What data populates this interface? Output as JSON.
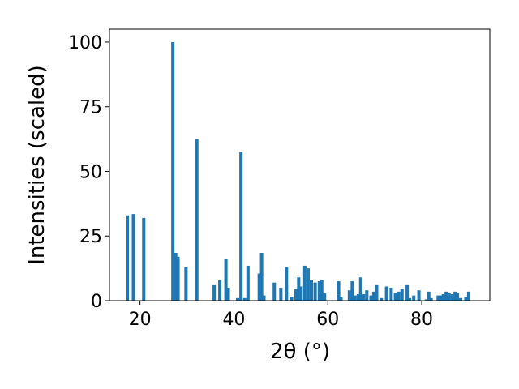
{
  "chart_data": {
    "type": "bar",
    "title": "",
    "xlabel": "2θ (°)",
    "ylabel": "Intensities (scaled)",
    "xlim": [
      13.5,
      94.5
    ],
    "ylim": [
      0,
      105
    ],
    "xticks": [
      20,
      40,
      60,
      80
    ],
    "yticks": [
      0,
      25,
      50,
      75,
      100
    ],
    "bar_width_deg": 0.7,
    "bar_color": "#1f77b4",
    "grid": false,
    "x": [
      17.3,
      18.6,
      20.8,
      27.0,
      27.6,
      28.1,
      29.8,
      32.1,
      35.8,
      37.0,
      38.3,
      38.8,
      40.8,
      41.5,
      42.3,
      43.0,
      45.4,
      45.9,
      46.4,
      48.6,
      50.0,
      51.2,
      52.3,
      53.2,
      53.8,
      54.3,
      55.1,
      55.8,
      56.5,
      57.3,
      58.2,
      58.7,
      59.3,
      62.3,
      62.8,
      64.6,
      65.2,
      65.8,
      66.5,
      67.0,
      67.6,
      68.3,
      69.2,
      69.8,
      70.4,
      71.4,
      72.5,
      73.5,
      74.4,
      75.1,
      75.8,
      76.9,
      77.4,
      78.3,
      79.4,
      81.0,
      81.5,
      82.0,
      83.5,
      84.0,
      84.6,
      85.2,
      85.8,
      86.5,
      87.1,
      87.6,
      88.3,
      89.4,
      90.0
    ],
    "values": [
      33.0,
      33.5,
      32.0,
      100.0,
      18.5,
      17.0,
      13.0,
      62.5,
      6.0,
      8.0,
      16.0,
      5.0,
      1.0,
      57.5,
      1.0,
      13.5,
      10.5,
      18.5,
      2.0,
      7.0,
      5.0,
      13.0,
      1.5,
      4.5,
      9.0,
      5.5,
      13.5,
      12.5,
      8.0,
      7.0,
      7.5,
      8.0,
      3.0,
      7.5,
      1.5,
      4.0,
      7.5,
      2.0,
      2.5,
      9.0,
      2.5,
      4.0,
      2.0,
      3.5,
      6.0,
      1.0,
      5.5,
      5.0,
      3.0,
      3.5,
      4.5,
      6.0,
      1.0,
      2.0,
      4.0,
      0.5,
      3.5,
      1.0,
      2.0,
      2.0,
      2.5,
      3.5,
      3.0,
      2.5,
      3.5,
      3.0,
      1.0,
      1.5,
      3.5
    ]
  }
}
